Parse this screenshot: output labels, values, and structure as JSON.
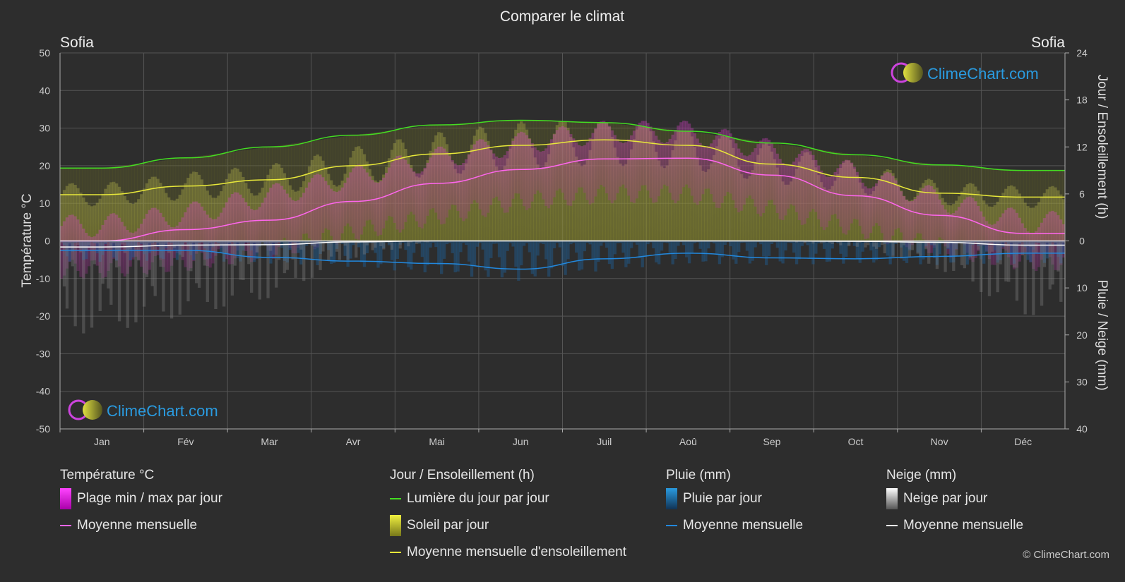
{
  "title": "Comparer le climat",
  "city_left": "Sofia",
  "city_right": "Sofia",
  "copyright": "© ClimeChart.com",
  "logo_text": "ClimeChart.com",
  "colors": {
    "background": "#2d2d2d",
    "daylight": "#44dd22",
    "sunshine_mean": "#e8e83a",
    "temp_mean": "#ff66ee",
    "temp_range": "#dd22cc",
    "rain": "#2288dd",
    "snow": "#ffffff",
    "logo": "#2a9be0"
  },
  "chart_data": {
    "type": "line",
    "title": "Comparer le climat",
    "categories": [
      "Jan",
      "Fév",
      "Mar",
      "Avr",
      "Mai",
      "Jun",
      "Juil",
      "Aoû",
      "Sep",
      "Oct",
      "Nov",
      "Déc"
    ],
    "y_left": {
      "label": "Température °C",
      "ticks": [
        "50",
        "40",
        "30",
        "20",
        "10",
        "0",
        "-10",
        "-20",
        "-30",
        "-40",
        "-50"
      ],
      "range": [
        -50,
        50
      ]
    },
    "y_right_top": {
      "label": "Jour / Ensoleillement (h)",
      "ticks": [
        "24",
        "18",
        "12",
        "6",
        "0"
      ],
      "range": [
        0,
        24
      ]
    },
    "y_right_bottom": {
      "label": "Pluie / Neige (mm)",
      "ticks": [
        "0",
        "10",
        "20",
        "30",
        "40"
      ],
      "range": [
        0,
        40
      ]
    },
    "grid": true,
    "series": [
      {
        "name": "Lumière du jour par jour",
        "unit": "h",
        "values": [
          9.3,
          10.6,
          12.0,
          13.5,
          14.8,
          15.4,
          15.1,
          14.0,
          12.5,
          11.0,
          9.7,
          9.0
        ]
      },
      {
        "name": "Moyenne mensuelle d'ensoleillement",
        "unit": "h",
        "values": [
          5.9,
          7.0,
          7.8,
          9.6,
          11.1,
          12.2,
          12.9,
          12.2,
          9.8,
          8.1,
          6.1,
          5.6
        ]
      },
      {
        "name": "Moyenne mensuelle",
        "kind": "temperature",
        "unit": "°C",
        "values": [
          0.0,
          3.0,
          5.5,
          10.5,
          15.3,
          19.0,
          21.8,
          22.0,
          17.5,
          12.0,
          6.8,
          2.0
        ]
      },
      {
        "name": "Moyenne mensuelle",
        "kind": "rain",
        "unit": "mm",
        "values": [
          2.0,
          2.0,
          3.5,
          4.3,
          4.8,
          6.0,
          3.8,
          2.6,
          3.6,
          3.8,
          3.3,
          2.6
        ]
      },
      {
        "name": "Moyenne mensuelle",
        "kind": "snow",
        "unit": "mm",
        "values": [
          1.3,
          0.9,
          0.8,
          0.2,
          0.0,
          0.0,
          0.0,
          0.0,
          0.0,
          0.1,
          0.3,
          0.9
        ]
      },
      {
        "name": "Plage min / max par jour",
        "kind": "temperature_max",
        "unit": "°C",
        "values": [
          4,
          7,
          12,
          17,
          22,
          26,
          29,
          29,
          24,
          18,
          11,
          5
        ]
      },
      {
        "name": "Plage min / max par jour",
        "kind": "temperature_min",
        "unit": "°C",
        "values": [
          -5,
          -3,
          0,
          5,
          9,
          13,
          15,
          15,
          11,
          6,
          1,
          -3
        ]
      },
      {
        "name": "Soleil par jour",
        "unit": "h",
        "values": [
          5.9,
          7.0,
          7.8,
          9.6,
          11.1,
          12.2,
          12.9,
          12.2,
          9.8,
          8.1,
          6.1,
          5.6
        ]
      },
      {
        "name": "Pluie par jour",
        "unit": "mm",
        "values": [
          1.2,
          1.1,
          1.3,
          1.5,
          1.9,
          2.3,
          1.7,
          1.3,
          1.4,
          1.3,
          1.4,
          1.3
        ]
      },
      {
        "name": "Neige par jour",
        "unit": "mm",
        "values": [
          1.6,
          1.3,
          1.0,
          0.3,
          0.0,
          0.0,
          0.0,
          0.0,
          0.0,
          0.1,
          0.5,
          1.3
        ]
      }
    ]
  },
  "legend": {
    "temperature": {
      "title": "Température °C",
      "range": "Plage min / max par jour",
      "mean": "Moyenne mensuelle"
    },
    "sun": {
      "title": "Jour / Ensoleillement (h)",
      "daylight": "Lumière du jour par jour",
      "sunshine": "Soleil par jour",
      "sunshine_mean": "Moyenne mensuelle d'ensoleillement"
    },
    "rain": {
      "title": "Pluie (mm)",
      "per_day": "Pluie par jour",
      "mean": "Moyenne mensuelle"
    },
    "snow": {
      "title": "Neige (mm)",
      "per_day": "Neige par jour",
      "mean": "Moyenne mensuelle"
    }
  }
}
